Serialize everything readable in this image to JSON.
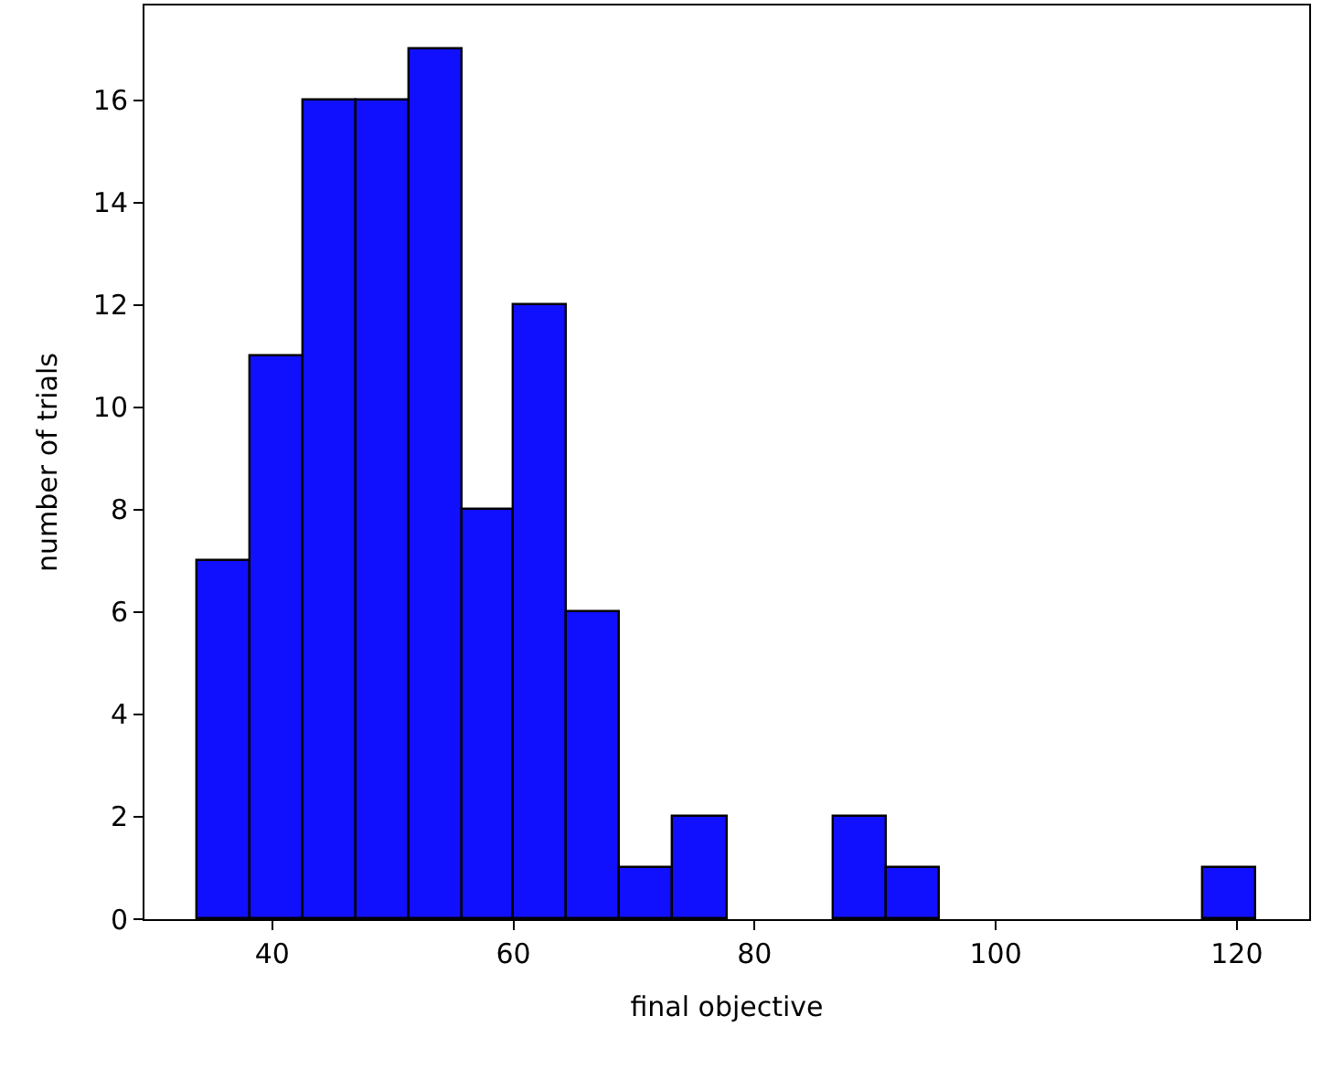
{
  "chart_data": {
    "type": "histogram",
    "xlabel": "final objective",
    "ylabel": "number of trials",
    "bins": [
      33.8,
      38.2,
      42.6,
      47.0,
      51.4,
      55.8,
      60.1,
      64.5,
      68.9,
      73.3,
      77.7,
      86.5,
      90.9,
      95.3,
      117.2,
      121.6
    ],
    "values": [
      7,
      11,
      16,
      16,
      17,
      8,
      12,
      6,
      1,
      2,
      0,
      2,
      1,
      0,
      1
    ],
    "color": "#1010ff",
    "xlim": [
      29.4,
      126.0
    ],
    "xticks": [
      40,
      60,
      80,
      100,
      120
    ],
    "ylim": [
      0,
      17.85
    ],
    "yticks": [
      0,
      2,
      4,
      6,
      8,
      10,
      12,
      14,
      16
    ]
  }
}
